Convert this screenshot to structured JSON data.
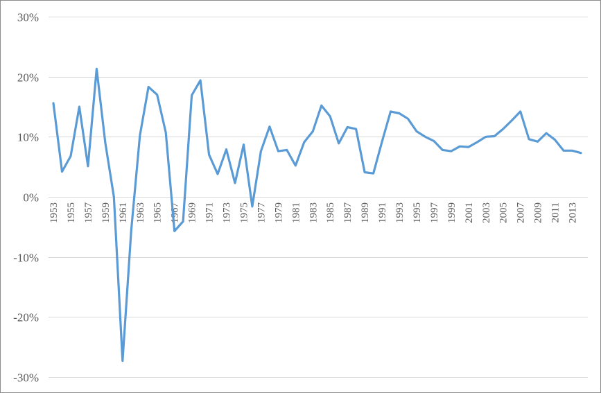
{
  "chart_data": {
    "type": "line",
    "title": "",
    "xlabel": "",
    "ylabel": "",
    "ylim": [
      -30,
      30
    ],
    "y_ticks": [
      30,
      20,
      10,
      0,
      -10,
      -20,
      -30
    ],
    "y_tick_labels": [
      "30%",
      "20%",
      "10%",
      "0%",
      "-10%",
      "-20%",
      "-30%"
    ],
    "x_tick_labels": [
      "1953",
      "1955",
      "1957",
      "1959",
      "1961",
      "1963",
      "1965",
      "1967",
      "1969",
      "1971",
      "1973",
      "1975",
      "1977",
      "1979",
      "1981",
      "1983",
      "1985",
      "1987",
      "1989",
      "1991",
      "1993",
      "1995",
      "1997",
      "1999",
      "2001",
      "2003",
      "2005",
      "2007",
      "2009",
      "2011",
      "2013"
    ],
    "grid": true,
    "legend": "none",
    "color": "#5b9bd5",
    "x": [
      1953,
      1954,
      1955,
      1956,
      1957,
      1958,
      1959,
      1960,
      1961,
      1962,
      1963,
      1964,
      1965,
      1966,
      1967,
      1968,
      1969,
      1970,
      1971,
      1972,
      1973,
      1974,
      1975,
      1976,
      1977,
      1978,
      1979,
      1980,
      1981,
      1982,
      1983,
      1984,
      1985,
      1986,
      1987,
      1988,
      1989,
      1990,
      1991,
      1992,
      1993,
      1994,
      1995,
      1996,
      1997,
      1998,
      1999,
      2000,
      2001,
      2002,
      2003,
      2004,
      2005,
      2006,
      2007,
      2008,
      2009,
      2010,
      2011,
      2012,
      2013,
      2014
    ],
    "series": [
      {
        "values": [
          15.6,
          4.2,
          6.8,
          15.0,
          5.1,
          21.3,
          9.0,
          0.0,
          -27.3,
          -5.6,
          10.2,
          18.3,
          17.0,
          10.7,
          -5.7,
          -4.1,
          16.9,
          19.4,
          7.0,
          3.8,
          7.9,
          2.3,
          8.7,
          -1.6,
          7.6,
          11.7,
          7.6,
          7.8,
          5.2,
          9.1,
          10.9,
          15.2,
          13.4,
          8.9,
          11.6,
          11.3,
          4.1,
          3.9,
          9.2,
          14.2,
          13.9,
          13.0,
          10.9,
          10.0,
          9.3,
          7.8,
          7.6,
          8.4,
          8.3,
          9.1,
          10.0,
          10.1,
          11.3,
          12.7,
          14.2,
          9.6,
          9.2,
          10.6,
          9.5,
          7.7,
          7.7,
          7.3
        ]
      }
    ]
  }
}
